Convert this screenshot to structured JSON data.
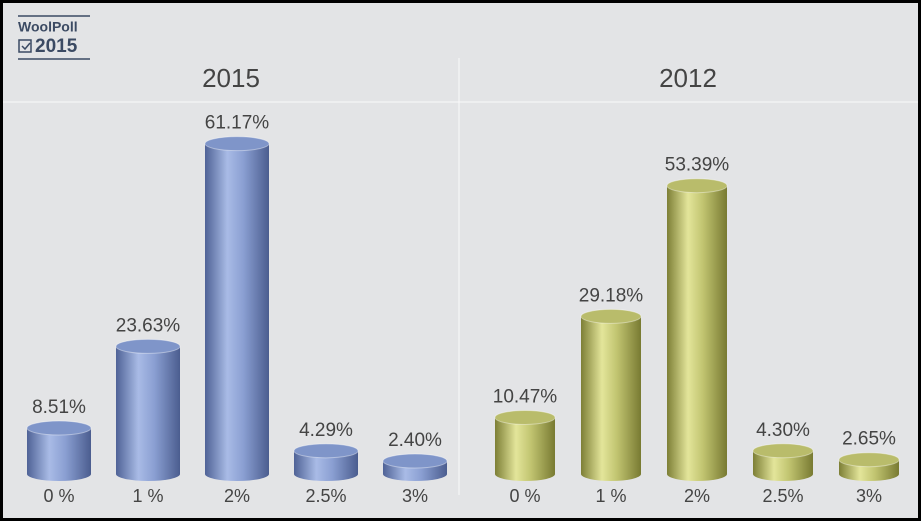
{
  "logo": {
    "name": "WoolPoll",
    "year": "2015"
  },
  "chart_data": [
    {
      "type": "bar",
      "title": "2015",
      "categories": [
        "0 %",
        "1 %",
        "2%",
        "2.5%",
        "3%"
      ],
      "values": [
        8.51,
        23.63,
        61.17,
        4.29,
        2.4
      ],
      "value_labels": [
        "8.51%",
        "23.63%",
        "61.17%",
        "4.29%",
        "2.40%"
      ],
      "color": "#7f95c9"
    },
    {
      "type": "bar",
      "title": "2012",
      "categories": [
        "0 %",
        "1 %",
        "2%",
        "2.5%",
        "3%"
      ],
      "values": [
        10.47,
        29.18,
        53.39,
        4.3,
        2.65
      ],
      "value_labels": [
        "10.47%",
        "29.18%",
        "53.39%",
        "4.30%",
        "2.65%"
      ],
      "color": "#b9bc6b"
    }
  ]
}
